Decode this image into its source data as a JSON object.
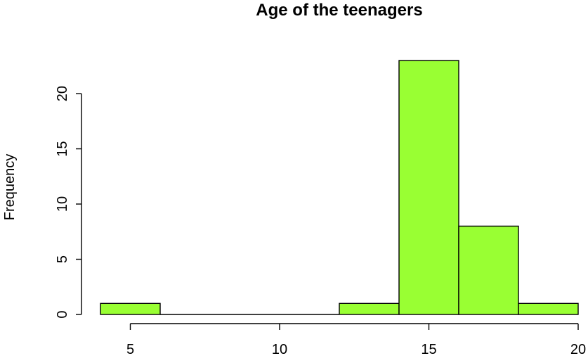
{
  "chart_data": {
    "type": "bar",
    "title": "Age of the teenagers",
    "xlabel": "",
    "ylabel": "Frequency",
    "bins": [
      {
        "start": 4,
        "end": 6,
        "count": 1
      },
      {
        "start": 6,
        "end": 8,
        "count": 0
      },
      {
        "start": 8,
        "end": 10,
        "count": 0
      },
      {
        "start": 10,
        "end": 12,
        "count": 0
      },
      {
        "start": 12,
        "end": 14,
        "count": 1
      },
      {
        "start": 14,
        "end": 16,
        "count": 23
      },
      {
        "start": 16,
        "end": 18,
        "count": 8
      },
      {
        "start": 18,
        "end": 20,
        "count": 1
      }
    ],
    "x_ticks": [
      5,
      10,
      15,
      20
    ],
    "x_tick_labels": [
      "5",
      "10",
      "15",
      "20"
    ],
    "y_ticks": [
      0,
      5,
      10,
      15,
      20
    ],
    "y_tick_labels": [
      "0",
      "5",
      "10",
      "15",
      "20"
    ],
    "xlim": [
      4,
      20
    ],
    "ylim": [
      0,
      23
    ],
    "bar_color": "#99ff33",
    "grid": false
  }
}
